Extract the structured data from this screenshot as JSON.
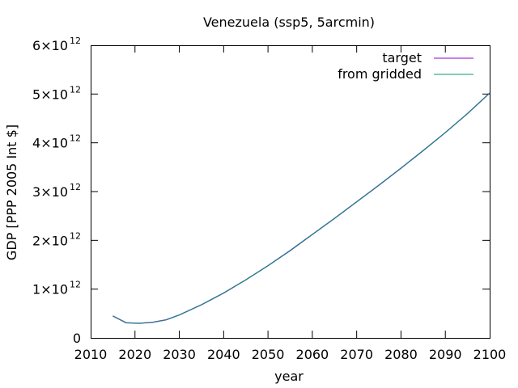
{
  "chart_data": {
    "type": "line",
    "title": "Venezuela (ssp5, 5arcmin)",
    "xlabel": "year",
    "ylabel": "GDP [PPP 2005 Int $]",
    "xlim": [
      2010,
      2100
    ],
    "ylim": [
      0,
      6000000000000.0
    ],
    "x_ticks": [
      2010,
      2020,
      2030,
      2040,
      2050,
      2060,
      2070,
      2080,
      2090,
      2100
    ],
    "y_ticks": [
      {
        "value": 0,
        "mantissa": "0",
        "exponent": ""
      },
      {
        "value": 1000000000000.0,
        "mantissa": "1×10",
        "exponent": "12"
      },
      {
        "value": 2000000000000.0,
        "mantissa": "2×10",
        "exponent": "12"
      },
      {
        "value": 3000000000000.0,
        "mantissa": "3×10",
        "exponent": "12"
      },
      {
        "value": 4000000000000.0,
        "mantissa": "4×10",
        "exponent": "12"
      },
      {
        "value": 5000000000000.0,
        "mantissa": "5×10",
        "exponent": "12"
      },
      {
        "value": 6000000000000.0,
        "mantissa": "6×10",
        "exponent": "12"
      }
    ],
    "grid": false,
    "legend_position": "top-right",
    "x": [
      2015,
      2018,
      2021,
      2024,
      2027,
      2030,
      2035,
      2040,
      2045,
      2050,
      2055,
      2060,
      2065,
      2070,
      2075,
      2080,
      2085,
      2090,
      2095,
      2100
    ],
    "series": [
      {
        "name": "target",
        "color": "#9400d3",
        "values": [
          450000000000.0,
          310000000000.0,
          300000000000.0,
          320000000000.0,
          370000000000.0,
          470000000000.0,
          680000000000.0,
          920000000000.0,
          1190000000000.0,
          1480000000000.0,
          1790000000000.0,
          2120000000000.0,
          2450000000000.0,
          2790000000000.0,
          3130000000000.0,
          3480000000000.0,
          3840000000000.0,
          4210000000000.0,
          4600000000000.0,
          5020000000000.0
        ]
      },
      {
        "name": "from gridded",
        "color": "#009e73",
        "values": [
          450000000000.0,
          310000000000.0,
          300000000000.0,
          320000000000.0,
          370000000000.0,
          470000000000.0,
          680000000000.0,
          920000000000.0,
          1190000000000.0,
          1480000000000.0,
          1790000000000.0,
          2120000000000.0,
          2450000000000.0,
          2790000000000.0,
          3130000000000.0,
          3480000000000.0,
          3840000000000.0,
          4210000000000.0,
          4600000000000.0,
          5020000000000.0
        ]
      }
    ]
  }
}
